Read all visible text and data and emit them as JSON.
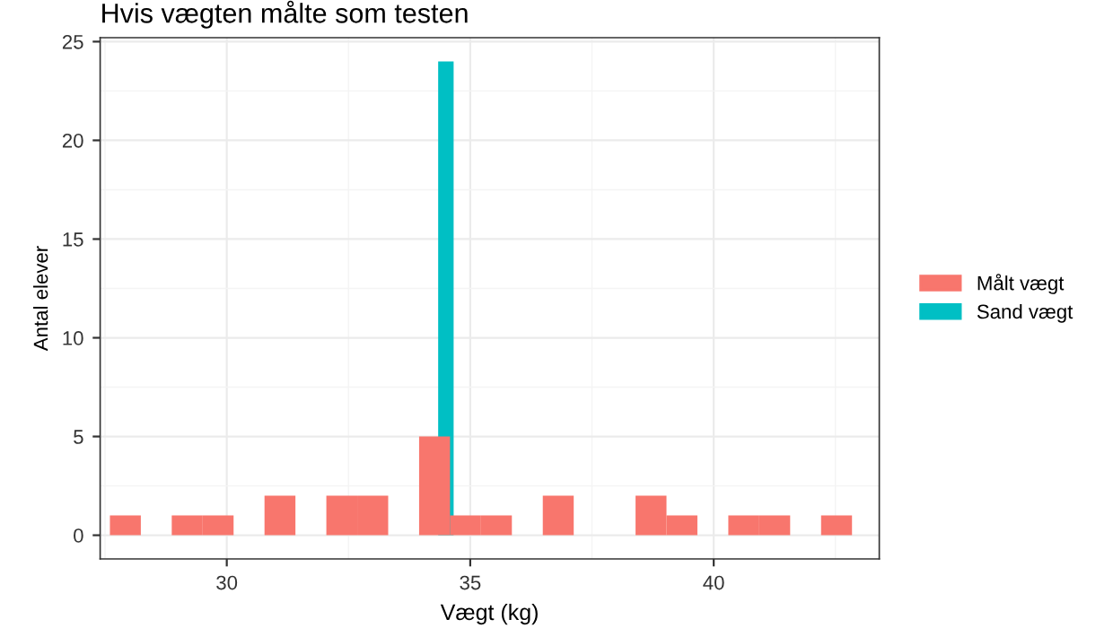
{
  "chart_data": {
    "type": "histogram",
    "title": "Hvis vægten målte som testen",
    "xlabel": "Vægt (kg)",
    "ylabel": "Antal elever",
    "bins": [
      27.6,
      28.235,
      28.87,
      29.505,
      30.14,
      30.775,
      31.41,
      32.045,
      32.68,
      33.315,
      33.95,
      34.585,
      35.22,
      35.855,
      36.49,
      37.125,
      37.76,
      38.395,
      39.03,
      39.665,
      40.3,
      40.935,
      41.57,
      42.205,
      42.84
    ],
    "series": [
      {
        "name": "Målt vægt",
        "color": "#f8766d",
        "values": [
          1,
          0,
          1,
          1,
          0,
          2,
          0,
          2,
          2,
          0,
          5,
          1,
          1,
          0,
          2,
          0,
          0,
          2,
          1,
          0,
          1,
          1,
          0,
          1
        ]
      },
      {
        "name": "Sand vægt",
        "color": "#00bfc4",
        "type": "bar",
        "x": [
          34.5
        ],
        "values": [
          24
        ]
      }
    ],
    "xlim": [
      27.4,
      43.4
    ],
    "ylim": [
      -1.2,
      25.2
    ],
    "xticks": [
      30,
      35,
      40
    ],
    "yticks": [
      0,
      5,
      10,
      15,
      20,
      25
    ],
    "grid": true,
    "legend": "right"
  }
}
